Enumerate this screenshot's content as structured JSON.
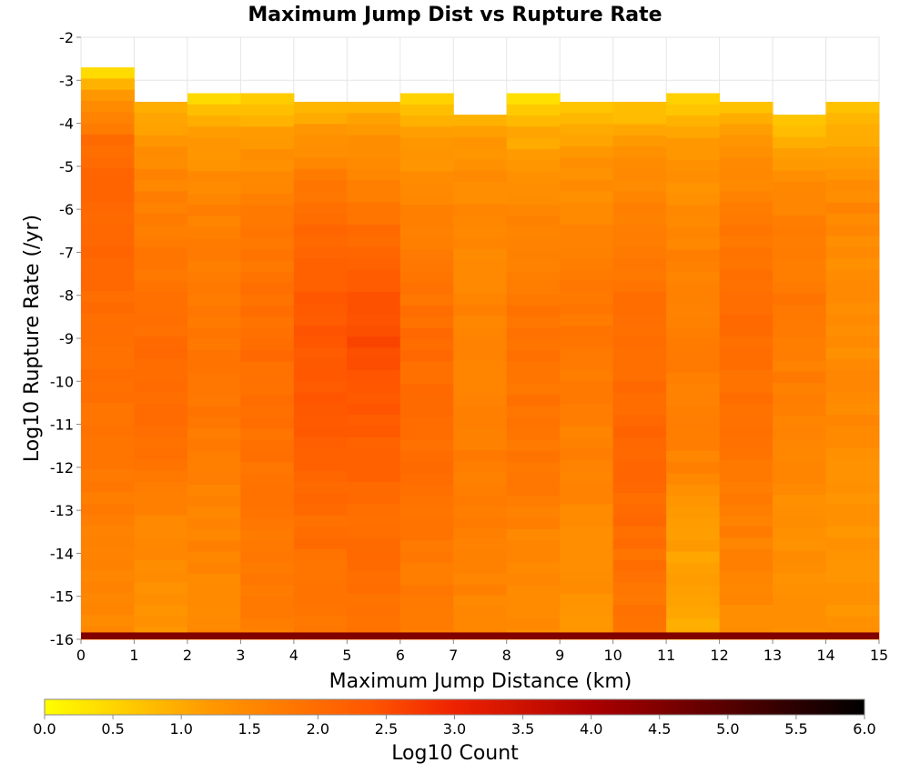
{
  "chart_data": {
    "type": "heatmap",
    "title": "Maximum Jump Dist vs Rupture Rate",
    "xlabel": "Maximum Jump Distance (km)",
    "ylabel": "Log10 Rupture Rate (/yr)",
    "xlim": [
      0,
      15
    ],
    "ylim": [
      -16,
      -2
    ],
    "x_bin_width": 1,
    "y_bin_height": 0.26,
    "x_ticks": [
      "0",
      "1",
      "2",
      "3",
      "4",
      "5",
      "6",
      "7",
      "8",
      "9",
      "10",
      "11",
      "12",
      "13",
      "14",
      "15"
    ],
    "y_ticks": [
      "-2",
      "-3",
      "-4",
      "-5",
      "-6",
      "-7",
      "-8",
      "-9",
      "-10",
      "-11",
      "-12",
      "-13",
      "-14",
      "-15",
      "-16"
    ],
    "grid": true,
    "colorbar": {
      "label": "Log10 Count",
      "min": 0.0,
      "max": 6.0,
      "ticks": [
        "0.0",
        "0.5",
        "1.0",
        "1.5",
        "2.0",
        "2.5",
        "3.0",
        "3.5",
        "4.0",
        "4.5",
        "5.0",
        "5.5",
        "6.0"
      ],
      "colors": [
        "#ffff00",
        "#ff9900",
        "#ff5500",
        "#ee2200",
        "#aa0000",
        "#000000"
      ]
    },
    "columns": [
      {
        "x": 0,
        "top": -2.7,
        "profile": [
          [
            -2.7,
            0.3
          ],
          [
            -3.3,
            1.3
          ],
          [
            -4.5,
            2.0
          ],
          [
            -5.5,
            2.1
          ],
          [
            -8,
            2.0
          ],
          [
            -12,
            1.8
          ],
          [
            -14,
            1.6
          ],
          [
            -15.8,
            1.5
          ]
        ]
      },
      {
        "x": 1,
        "top": -3.5,
        "profile": [
          [
            -3.5,
            0.8
          ],
          [
            -4.2,
            1.2
          ],
          [
            -5,
            1.5
          ],
          [
            -7,
            1.8
          ],
          [
            -9,
            2.0
          ],
          [
            -11,
            2.0
          ],
          [
            -13,
            1.6
          ],
          [
            -15.8,
            1.3
          ]
        ]
      },
      {
        "x": 2,
        "top": -3.3,
        "profile": [
          [
            -3.3,
            0.4
          ],
          [
            -4.2,
            1.2
          ],
          [
            -6,
            1.6
          ],
          [
            -9,
            1.8
          ],
          [
            -11,
            1.8
          ],
          [
            -13,
            1.6
          ],
          [
            -14.5,
            1.5
          ],
          [
            -15.8,
            1.5
          ]
        ]
      },
      {
        "x": 3,
        "top": -3.3,
        "profile": [
          [
            -3.3,
            0.5
          ],
          [
            -4.5,
            1.3
          ],
          [
            -6,
            1.7
          ],
          [
            -9,
            2.0
          ],
          [
            -11,
            1.9
          ],
          [
            -13,
            1.8
          ],
          [
            -15.8,
            1.7
          ]
        ]
      },
      {
        "x": 4,
        "top": -3.5,
        "profile": [
          [
            -3.5,
            0.8
          ],
          [
            -4.5,
            1.4
          ],
          [
            -6,
            2.0
          ],
          [
            -9,
            2.4
          ],
          [
            -11,
            2.3
          ],
          [
            -13,
            2.0
          ],
          [
            -15.8,
            1.8
          ]
        ]
      },
      {
        "x": 5,
        "top": -3.5,
        "profile": [
          [
            -3.5,
            0.8
          ],
          [
            -4.5,
            1.4
          ],
          [
            -7,
            2.1
          ],
          [
            -9,
            2.6
          ],
          [
            -11,
            2.3
          ],
          [
            -13,
            2.0
          ],
          [
            -15.8,
            1.9
          ]
        ]
      },
      {
        "x": 6,
        "top": -3.3,
        "profile": [
          [
            -3.3,
            0.4
          ],
          [
            -4.2,
            1.1
          ],
          [
            -6,
            1.6
          ],
          [
            -9,
            2.0
          ],
          [
            -12,
            2.0
          ],
          [
            -13,
            1.8
          ],
          [
            -15.8,
            1.7
          ]
        ]
      },
      {
        "x": 7,
        "top": -3.8,
        "profile": [
          [
            -3.8,
            0.9
          ],
          [
            -4.5,
            1.3
          ],
          [
            -6,
            1.5
          ],
          [
            -9,
            1.6
          ],
          [
            -12,
            1.7
          ],
          [
            -14,
            1.6
          ],
          [
            -15.8,
            1.5
          ]
        ]
      },
      {
        "x": 8,
        "top": -3.3,
        "profile": [
          [
            -3.3,
            0.3
          ],
          [
            -4.2,
            1.0
          ],
          [
            -6,
            1.5
          ],
          [
            -9,
            1.9
          ],
          [
            -12,
            1.8
          ],
          [
            -14,
            1.5
          ],
          [
            -15.8,
            1.4
          ]
        ]
      },
      {
        "x": 9,
        "top": -3.5,
        "profile": [
          [
            -3.5,
            0.6
          ],
          [
            -4.5,
            1.2
          ],
          [
            -7,
            1.7
          ],
          [
            -9,
            1.8
          ],
          [
            -12,
            1.6
          ],
          [
            -14,
            1.4
          ],
          [
            -15.8,
            1.3
          ]
        ]
      },
      {
        "x": 10,
        "top": -3.5,
        "profile": [
          [
            -3.5,
            0.6
          ],
          [
            -4.5,
            1.3
          ],
          [
            -7,
            1.8
          ],
          [
            -9,
            2.0
          ],
          [
            -12,
            2.1
          ],
          [
            -14,
            1.9
          ],
          [
            -15.8,
            1.8
          ]
        ]
      },
      {
        "x": 11,
        "top": -3.3,
        "profile": [
          [
            -3.3,
            0.4
          ],
          [
            -4.5,
            1.2
          ],
          [
            -7,
            1.6
          ],
          [
            -10,
            1.7
          ],
          [
            -12,
            1.6
          ],
          [
            -13,
            1.2
          ],
          [
            -15.8,
            1.0
          ]
        ]
      },
      {
        "x": 12,
        "top": -3.5,
        "profile": [
          [
            -3.5,
            0.7
          ],
          [
            -4.5,
            1.3
          ],
          [
            -7,
            1.9
          ],
          [
            -9,
            2.0
          ],
          [
            -12,
            1.8
          ],
          [
            -14,
            1.6
          ],
          [
            -15.8,
            1.4
          ]
        ]
      },
      {
        "x": 13,
        "top": -3.8,
        "profile": [
          [
            -3.8,
            0.5
          ],
          [
            -4.7,
            1.2
          ],
          [
            -6,
            1.6
          ],
          [
            -8,
            1.8
          ],
          [
            -11,
            1.6
          ],
          [
            -13,
            1.4
          ],
          [
            -15.8,
            1.3
          ]
        ]
      },
      {
        "x": 14,
        "top": -3.5,
        "profile": [
          [
            -3.5,
            0.6
          ],
          [
            -4.5,
            1.1
          ],
          [
            -6,
            1.5
          ],
          [
            -8,
            1.4
          ],
          [
            -11,
            1.5
          ],
          [
            -13,
            1.3
          ],
          [
            -15.8,
            1.3
          ]
        ]
      }
    ],
    "bottom_row": {
      "y": -16,
      "value": 4.5
    }
  }
}
